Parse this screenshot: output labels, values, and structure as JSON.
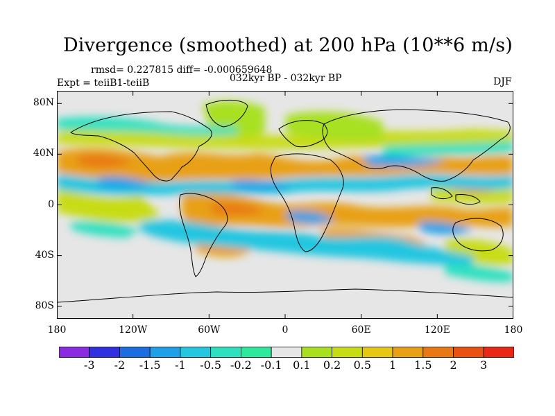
{
  "title": "Divergence (smoothed) at 200 hPa (10**6 m/s)",
  "stats_text": "rmsd= 0.227815 diff= -0.000659648",
  "experiment_text": "Expt = teiiB1-teiiB",
  "period_text": "032kyr BP - 032kyr BP",
  "season": "DJF",
  "map": {
    "projection": "cylindrical-equidistant",
    "lon_range": [
      -180,
      180
    ],
    "lat_range": [
      -90,
      90
    ],
    "land_outline_color": "#000000",
    "background_color": "#e6e6e6",
    "y_ticks": [
      "80N",
      "40N",
      "0",
      "40S",
      "80S"
    ],
    "x_ticks": [
      "180",
      "120W",
      "60W",
      "0",
      "60E",
      "120E",
      "180"
    ],
    "y_tick_values": [
      80,
      40,
      0,
      -40,
      -80
    ],
    "x_tick_values": [
      -180,
      -120,
      -60,
      0,
      60,
      120,
      180
    ]
  },
  "colorbar": {
    "colors": [
      "#8a2be2",
      "#3030e0",
      "#1b6de0",
      "#1ea0e8",
      "#24c6e0",
      "#2ee0c0",
      "#2ee89c",
      "#e6e6e6",
      "#a8e020",
      "#c8dc14",
      "#e6c814",
      "#e8a014",
      "#e87814",
      "#e85014",
      "#e82814"
    ],
    "labels": [
      "-3",
      "-2",
      "-1.5",
      "-1",
      "-0.5",
      "-0.2",
      "-0.1",
      "0.1",
      "0.2",
      "0.5",
      "1",
      "1.5",
      "2",
      "3"
    ]
  }
}
